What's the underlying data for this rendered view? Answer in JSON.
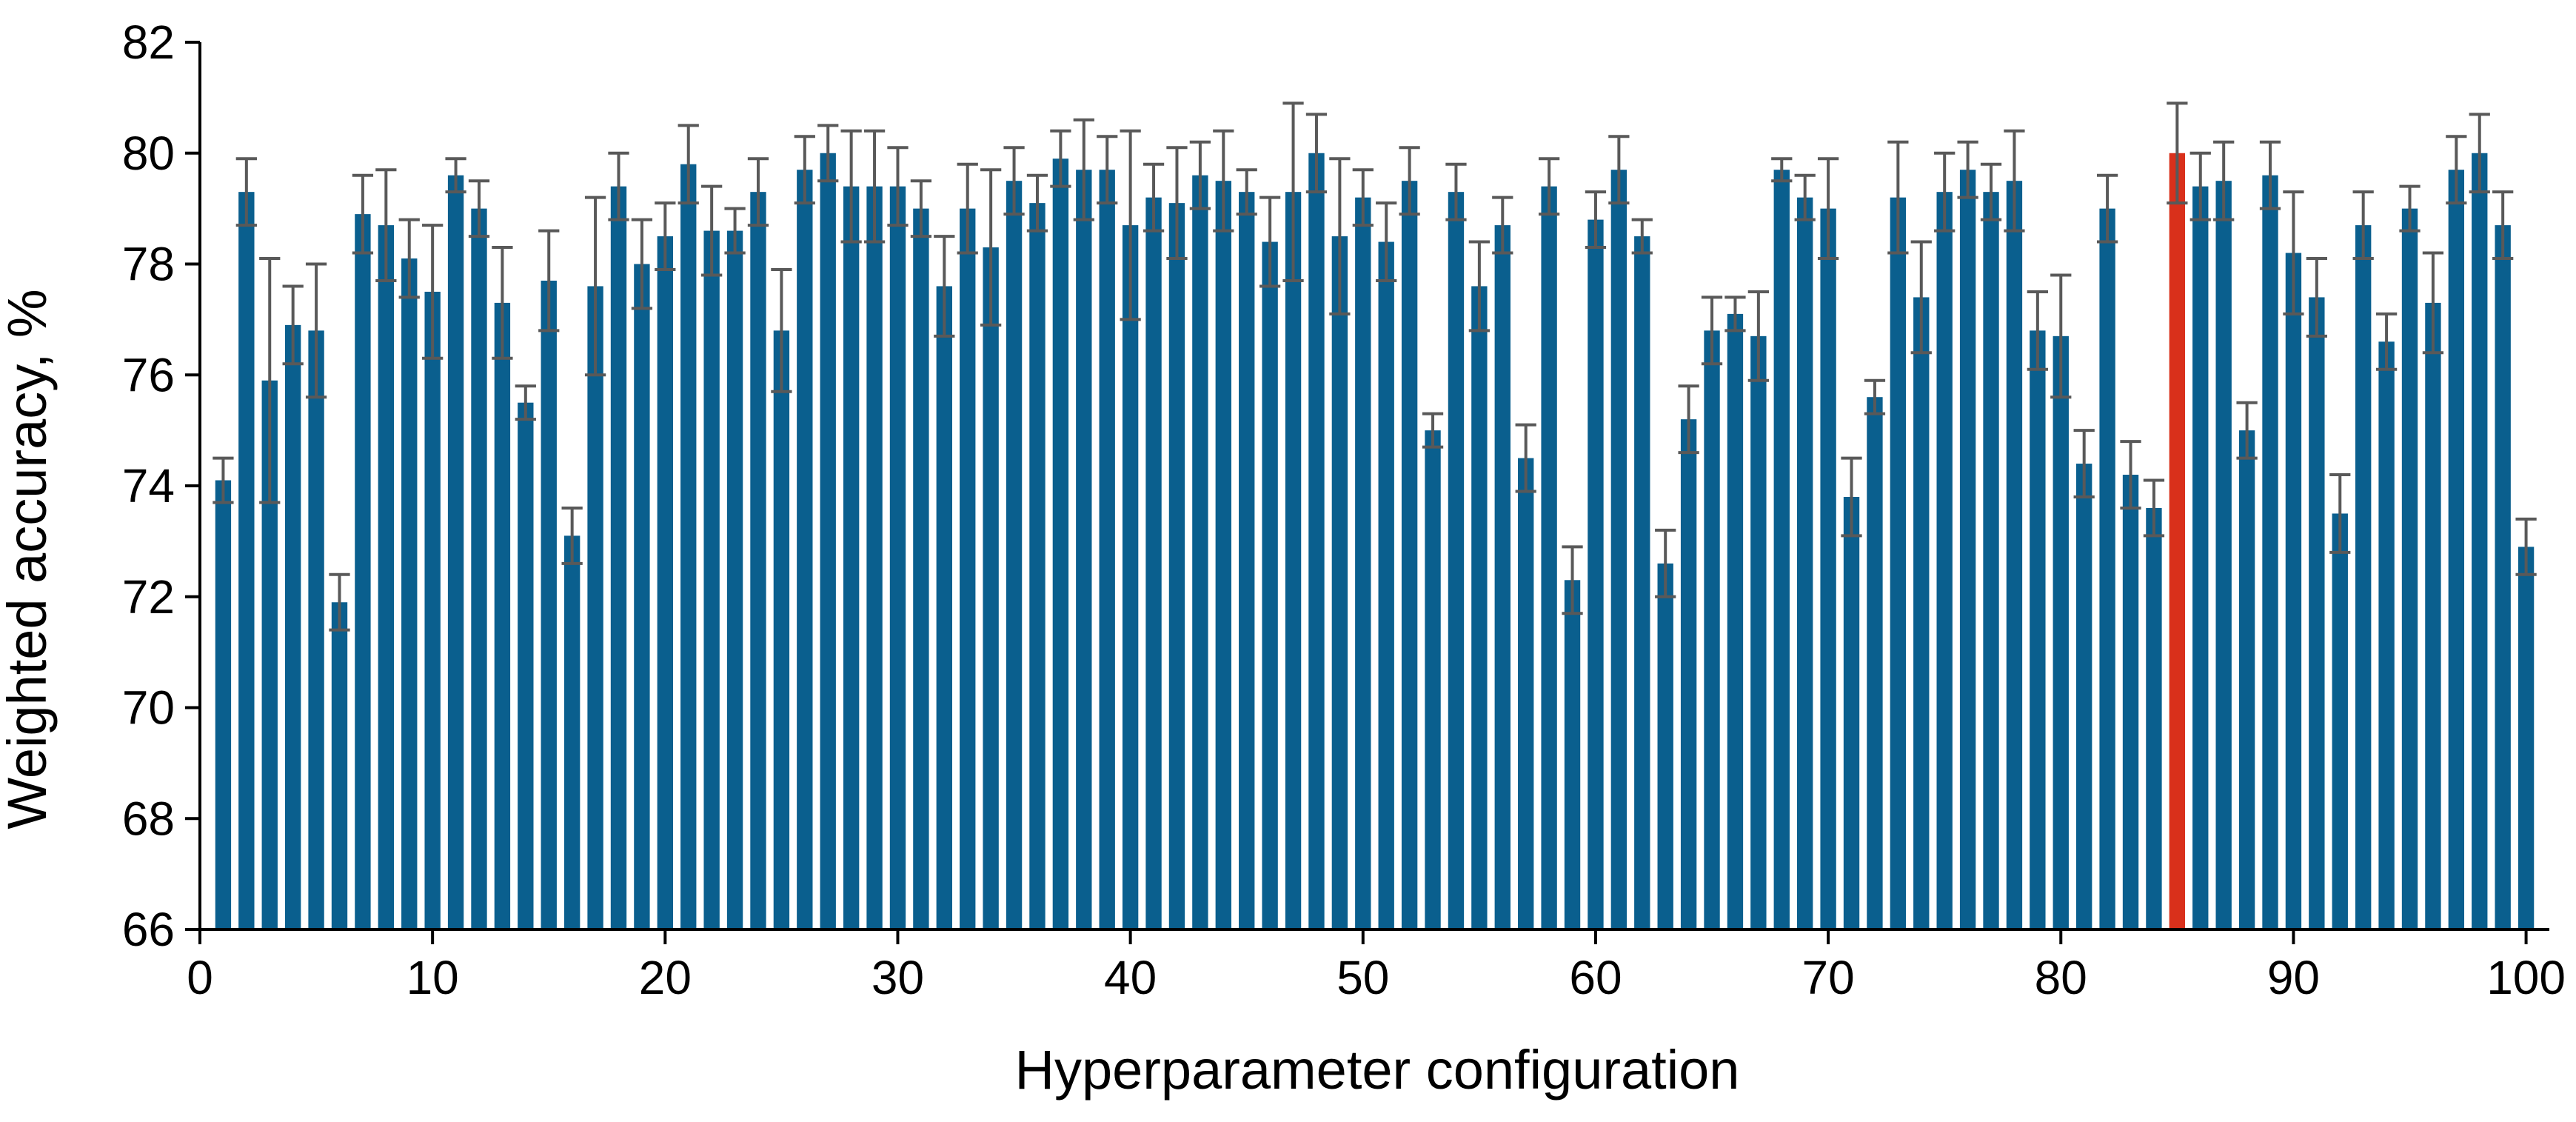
{
  "chart_data": {
    "type": "bar",
    "title": "",
    "xlabel": "Hyperparameter configuration",
    "ylabel": "Weighted accuracy, %",
    "xlim": [
      0,
      101
    ],
    "ylim": [
      66,
      82
    ],
    "x_ticks": [
      0,
      10,
      20,
      30,
      40,
      50,
      60,
      70,
      80,
      90,
      100
    ],
    "y_ticks": [
      66,
      68,
      70,
      72,
      74,
      76,
      78,
      80,
      82
    ],
    "grid": false,
    "legend": "none",
    "error_bars": true,
    "colors": {
      "bar": "#0A5F8E",
      "highlight": "#D9301B",
      "error_bar": "#595959",
      "axis": "#000000"
    },
    "highlight_x": 85,
    "x": [
      1,
      2,
      3,
      4,
      5,
      6,
      7,
      8,
      9,
      10,
      11,
      12,
      13,
      14,
      15,
      16,
      17,
      18,
      19,
      20,
      21,
      22,
      23,
      24,
      25,
      26,
      27,
      28,
      29,
      30,
      31,
      32,
      33,
      34,
      35,
      36,
      37,
      38,
      39,
      40,
      41,
      42,
      43,
      44,
      45,
      46,
      47,
      48,
      49,
      50,
      51,
      52,
      53,
      54,
      55,
      56,
      57,
      58,
      59,
      60,
      61,
      62,
      63,
      64,
      65,
      66,
      67,
      68,
      69,
      70,
      71,
      72,
      73,
      74,
      75,
      76,
      77,
      78,
      79,
      80,
      81,
      82,
      83,
      84,
      85,
      86,
      87,
      88,
      89,
      90,
      91,
      92,
      93,
      94,
      95,
      96,
      97,
      98,
      99,
      100
    ],
    "values": [
      74.1,
      79.3,
      75.9,
      76.9,
      76.8,
      71.9,
      78.9,
      78.7,
      78.1,
      77.5,
      79.6,
      79.0,
      77.3,
      75.5,
      77.7,
      73.1,
      77.6,
      79.4,
      78.0,
      78.5,
      79.8,
      78.6,
      78.6,
      79.3,
      76.8,
      79.7,
      80.0,
      79.4,
      79.4,
      79.4,
      79.0,
      77.6,
      79.0,
      78.3,
      79.5,
      79.1,
      79.9,
      79.7,
      79.7,
      78.7,
      79.2,
      79.1,
      79.6,
      79.5,
      79.3,
      78.4,
      79.3,
      80.0,
      78.5,
      79.2,
      78.4,
      79.5,
      75.0,
      79.3,
      77.6,
      78.7,
      74.5,
      79.4,
      72.3,
      78.8,
      79.7,
      78.5,
      72.6,
      75.2,
      76.8,
      77.1,
      76.7,
      79.7,
      79.2,
      79.0,
      73.8,
      75.6,
      79.2,
      77.4,
      79.3,
      79.7,
      79.3,
      79.5,
      76.8,
      76.7,
      74.4,
      79.0,
      74.2,
      73.6,
      80.0,
      79.4,
      79.5,
      75.0,
      79.6,
      78.2,
      77.4,
      73.5,
      78.7,
      76.6,
      79.0,
      77.3,
      79.7,
      80.0,
      78.7,
      72.9
    ],
    "errors": [
      0.4,
      0.6,
      2.2,
      0.7,
      1.2,
      0.5,
      0.7,
      1.0,
      0.7,
      1.2,
      0.3,
      0.5,
      1.0,
      0.3,
      0.9,
      0.5,
      1.6,
      0.6,
      0.8,
      0.6,
      0.7,
      0.8,
      0.4,
      0.6,
      1.1,
      0.6,
      0.5,
      1.0,
      1.0,
      0.7,
      0.5,
      0.9,
      0.8,
      1.4,
      0.6,
      0.5,
      0.5,
      0.9,
      0.6,
      1.7,
      0.6,
      1.0,
      0.6,
      0.9,
      0.4,
      0.8,
      1.6,
      0.7,
      1.4,
      0.5,
      0.7,
      0.6,
      0.3,
      0.5,
      0.8,
      0.5,
      0.6,
      0.5,
      0.6,
      0.5,
      0.6,
      0.3,
      0.6,
      0.6,
      0.6,
      0.3,
      0.8,
      0.2,
      0.4,
      0.9,
      0.7,
      0.3,
      1.0,
      1.0,
      0.7,
      0.5,
      0.5,
      0.9,
      0.7,
      1.1,
      0.6,
      0.6,
      0.6,
      0.5,
      0.9,
      0.6,
      0.7,
      0.5,
      0.6,
      1.1,
      0.7,
      0.7,
      0.6,
      0.5,
      0.4,
      0.9,
      0.6,
      0.7,
      0.6,
      0.5
    ]
  }
}
